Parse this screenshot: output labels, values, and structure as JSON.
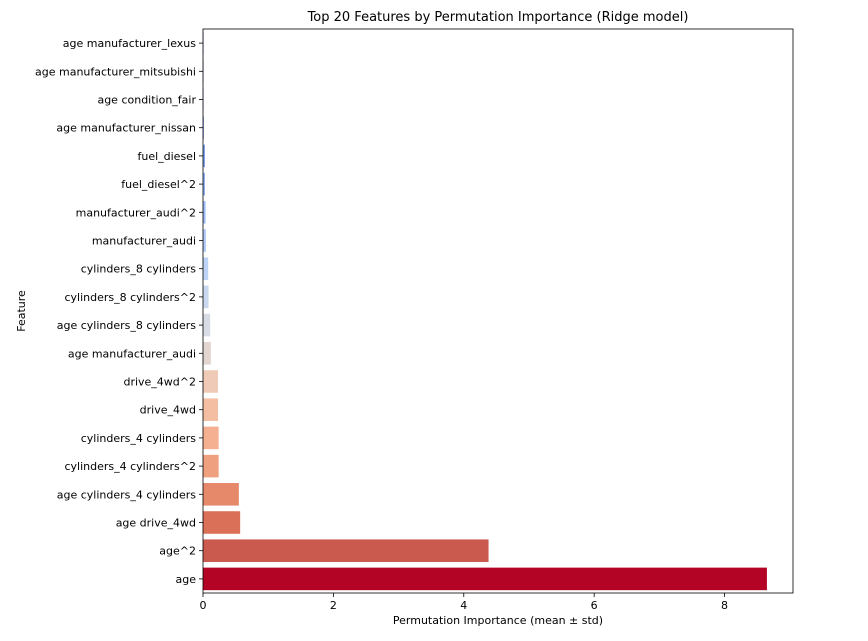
{
  "chart_data": {
    "type": "bar",
    "orientation": "horizontal",
    "title": "Top 20 Features by Permutation Importance (Ridge model)",
    "xlabel": "Permutation Importance (mean ± std)",
    "ylabel": "Feature",
    "xlim": [
      0,
      9.05
    ],
    "xticks": [
      0,
      2,
      4,
      6,
      8
    ],
    "grid": false,
    "categories": [
      "age manufacturer_lexus",
      "age manufacturer_mitsubishi",
      "age condition_fair",
      "age manufacturer_nissan",
      "fuel_diesel",
      "fuel_diesel^2",
      "manufacturer_audi^2",
      "manufacturer_audi",
      "cylinders_8 cylinders",
      "cylinders_8 cylinders^2",
      "age cylinders_8 cylinders",
      "age manufacturer_audi",
      "drive_4wd^2",
      "drive_4wd",
      "cylinders_4 cylinders",
      "cylinders_4 cylinders^2",
      "age cylinders_4 cylinders",
      "age drive_4wd",
      "age^2",
      "age"
    ],
    "values": [
      0.004,
      0.006,
      0.008,
      0.012,
      0.03,
      0.03,
      0.04,
      0.045,
      0.08,
      0.085,
      0.11,
      0.12,
      0.23,
      0.23,
      0.24,
      0.24,
      0.55,
      0.57,
      4.38,
      8.65
    ],
    "colors": [
      "#3b4cc0",
      "#4a63d3",
      "#5b7be0",
      "#6b8ee8",
      "#7b9ff0",
      "#8db0f6",
      "#9ebffa",
      "#b0cbfb",
      "#bed4f6",
      "#cad8ef",
      "#d7dce5",
      "#e3d5cf",
      "#efcab7",
      "#f4bea3",
      "#f4b090",
      "#efa07e",
      "#e6896a",
      "#db7058",
      "#cb5a4e",
      "#b40426"
    ]
  }
}
